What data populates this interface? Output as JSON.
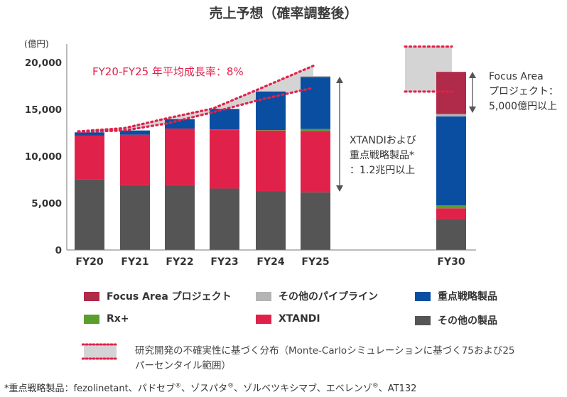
{
  "title": "売上予想（確率調整後）",
  "chart_data": {
    "type": "bar",
    "stacked": true,
    "unit_label": "(億円)",
    "categories": [
      "FY20",
      "FY21",
      "FY22",
      "FY23",
      "FY24",
      "FY25",
      "FY30"
    ],
    "ylim": [
      0,
      22000
    ],
    "yticks": [
      0,
      5000,
      10000,
      15000,
      20000
    ],
    "ytick_labels": [
      "0",
      "5,000",
      "10,000",
      "15,000",
      "20,000"
    ],
    "grid": false,
    "series": [
      {
        "name": "その他の製品",
        "color": "#555555",
        "values": [
          7550,
          6900,
          6900,
          6550,
          6250,
          6150,
          3300
        ]
      },
      {
        "name": "XTANDI",
        "color": "#e0224b",
        "values": [
          4650,
          5400,
          6050,
          6250,
          6500,
          6550,
          1150
        ]
      },
      {
        "name": "Rx+",
        "color": "#5a9e2e",
        "values": [
          0,
          0,
          0,
          50,
          50,
          200,
          300
        ]
      },
      {
        "name": "重点戦略製品",
        "color": "#0a4ea2",
        "values": [
          350,
          450,
          1000,
          2200,
          4100,
          5550,
          9500
        ]
      },
      {
        "name": "その他のパイプライン",
        "color": "#b4b4b4",
        "values": [
          0,
          0,
          0,
          0,
          50,
          100,
          250
        ]
      },
      {
        "name": "Focus Area プロジェクト",
        "color": "#b02a4a",
        "values": [
          0,
          0,
          0,
          0,
          0,
          0,
          4500
        ]
      }
    ],
    "uncertainty": {
      "upper": [
        12650,
        13000,
        14050,
        15100,
        17350,
        19650
      ],
      "lower": [
        12600,
        12750,
        13500,
        14700,
        16100,
        17300
      ],
      "fy30_upper": 21700,
      "fy30_lower": 16900
    },
    "cagr_label": "FY20-FY25 年平均成長率：8%",
    "annotations": {
      "xtandi": [
        "XTANDIおよび",
        "重点戦略製品*",
        "：1.2兆円以上"
      ],
      "focus": [
        "Focus Area",
        "プロジェクト：",
        "5,000億円以上"
      ]
    }
  },
  "legend": {
    "focus": "Focus Area プロジェクト",
    "pipeline": "その他のパイプライン",
    "strategic": "重点戦略製品",
    "rx": "Rx+",
    "xtandi": "XTANDI",
    "others": "その他の製品"
  },
  "colors": {
    "focus": "#b02a4a",
    "pipeline": "#b4b4b4",
    "strategic": "#0a4ea2",
    "rx": "#5a9e2e",
    "xtandi": "#e0224b",
    "others": "#555555",
    "dotted": "#e0224b",
    "band": "#d4d4d4"
  },
  "uncertainty_note": "研究開発の不確実性に基づく分布（Monte-Carloシミュレーションに基づく75および25パーセンタイル範囲）",
  "footnote": {
    "prefix": "*重点戦略製品：fezolinetant、パドセブ",
    "mid1": "、ゾスパタ",
    "mid2": "、ゾルベツキシマブ、エベレンゾ",
    "suffix": "、AT132",
    "reg": "®"
  }
}
